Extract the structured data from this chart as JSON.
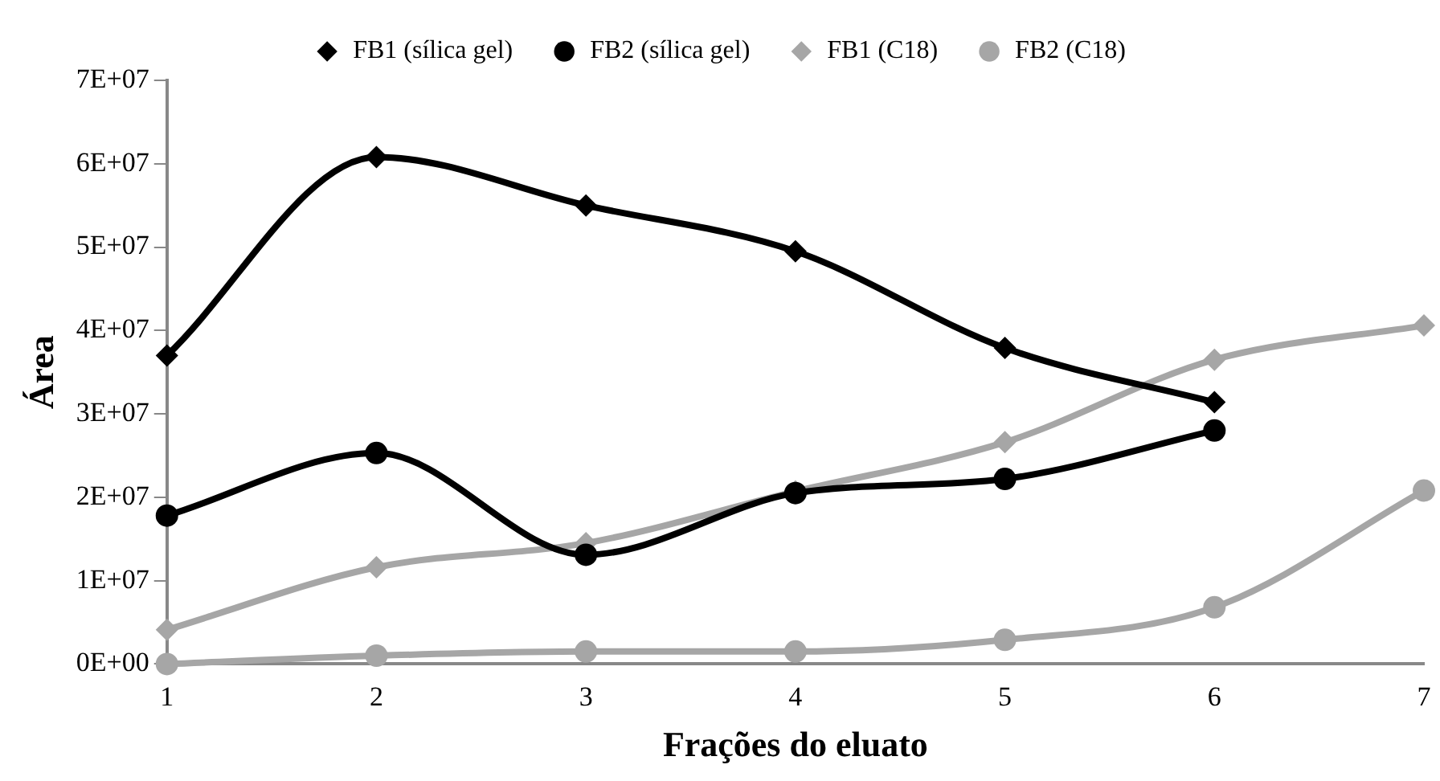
{
  "chart_data": {
    "type": "line",
    "xlabel": "Frações do eluato",
    "ylabel": "Área",
    "x": [
      1,
      2,
      3,
      4,
      5,
      6,
      7
    ],
    "xlim": [
      1,
      7
    ],
    "xticks": [
      1,
      2,
      3,
      4,
      5,
      6,
      7
    ],
    "ylim": [
      0,
      70000000
    ],
    "yticks": [
      {
        "value": 0,
        "label": "0E+00"
      },
      {
        "value": 10000000,
        "label": "1E+07"
      },
      {
        "value": 20000000,
        "label": "2E+07"
      },
      {
        "value": 30000000,
        "label": "3E+07"
      },
      {
        "value": 40000000,
        "label": "4E+07"
      },
      {
        "value": 50000000,
        "label": "5E+07"
      },
      {
        "value": 60000000,
        "label": "6E+07"
      },
      {
        "value": 70000000,
        "label": "7E+07"
      }
    ],
    "grid": false,
    "legend": "top",
    "series": [
      {
        "name": "FB1 (sílica gel)",
        "color": "#000000",
        "marker": "diamond",
        "values": [
          37000000,
          60800000,
          55000000,
          49500000,
          37900000,
          31400000,
          null
        ]
      },
      {
        "name": "FB2 (sílica gel)",
        "color": "#000000",
        "marker": "circle",
        "values": [
          17800000,
          25300000,
          13100000,
          20500000,
          22200000,
          28000000,
          null
        ]
      },
      {
        "name": "FB1 (C18)",
        "color": "#a6a6a6",
        "marker": "diamond",
        "values": [
          4100000,
          11600000,
          14500000,
          20700000,
          26600000,
          36500000,
          40600000
        ]
      },
      {
        "name": "FB2 (C18)",
        "color": "#a6a6a6",
        "marker": "circle",
        "values": [
          0,
          1000000,
          1500000,
          1500000,
          2900000,
          6800000,
          20800000
        ]
      }
    ]
  }
}
